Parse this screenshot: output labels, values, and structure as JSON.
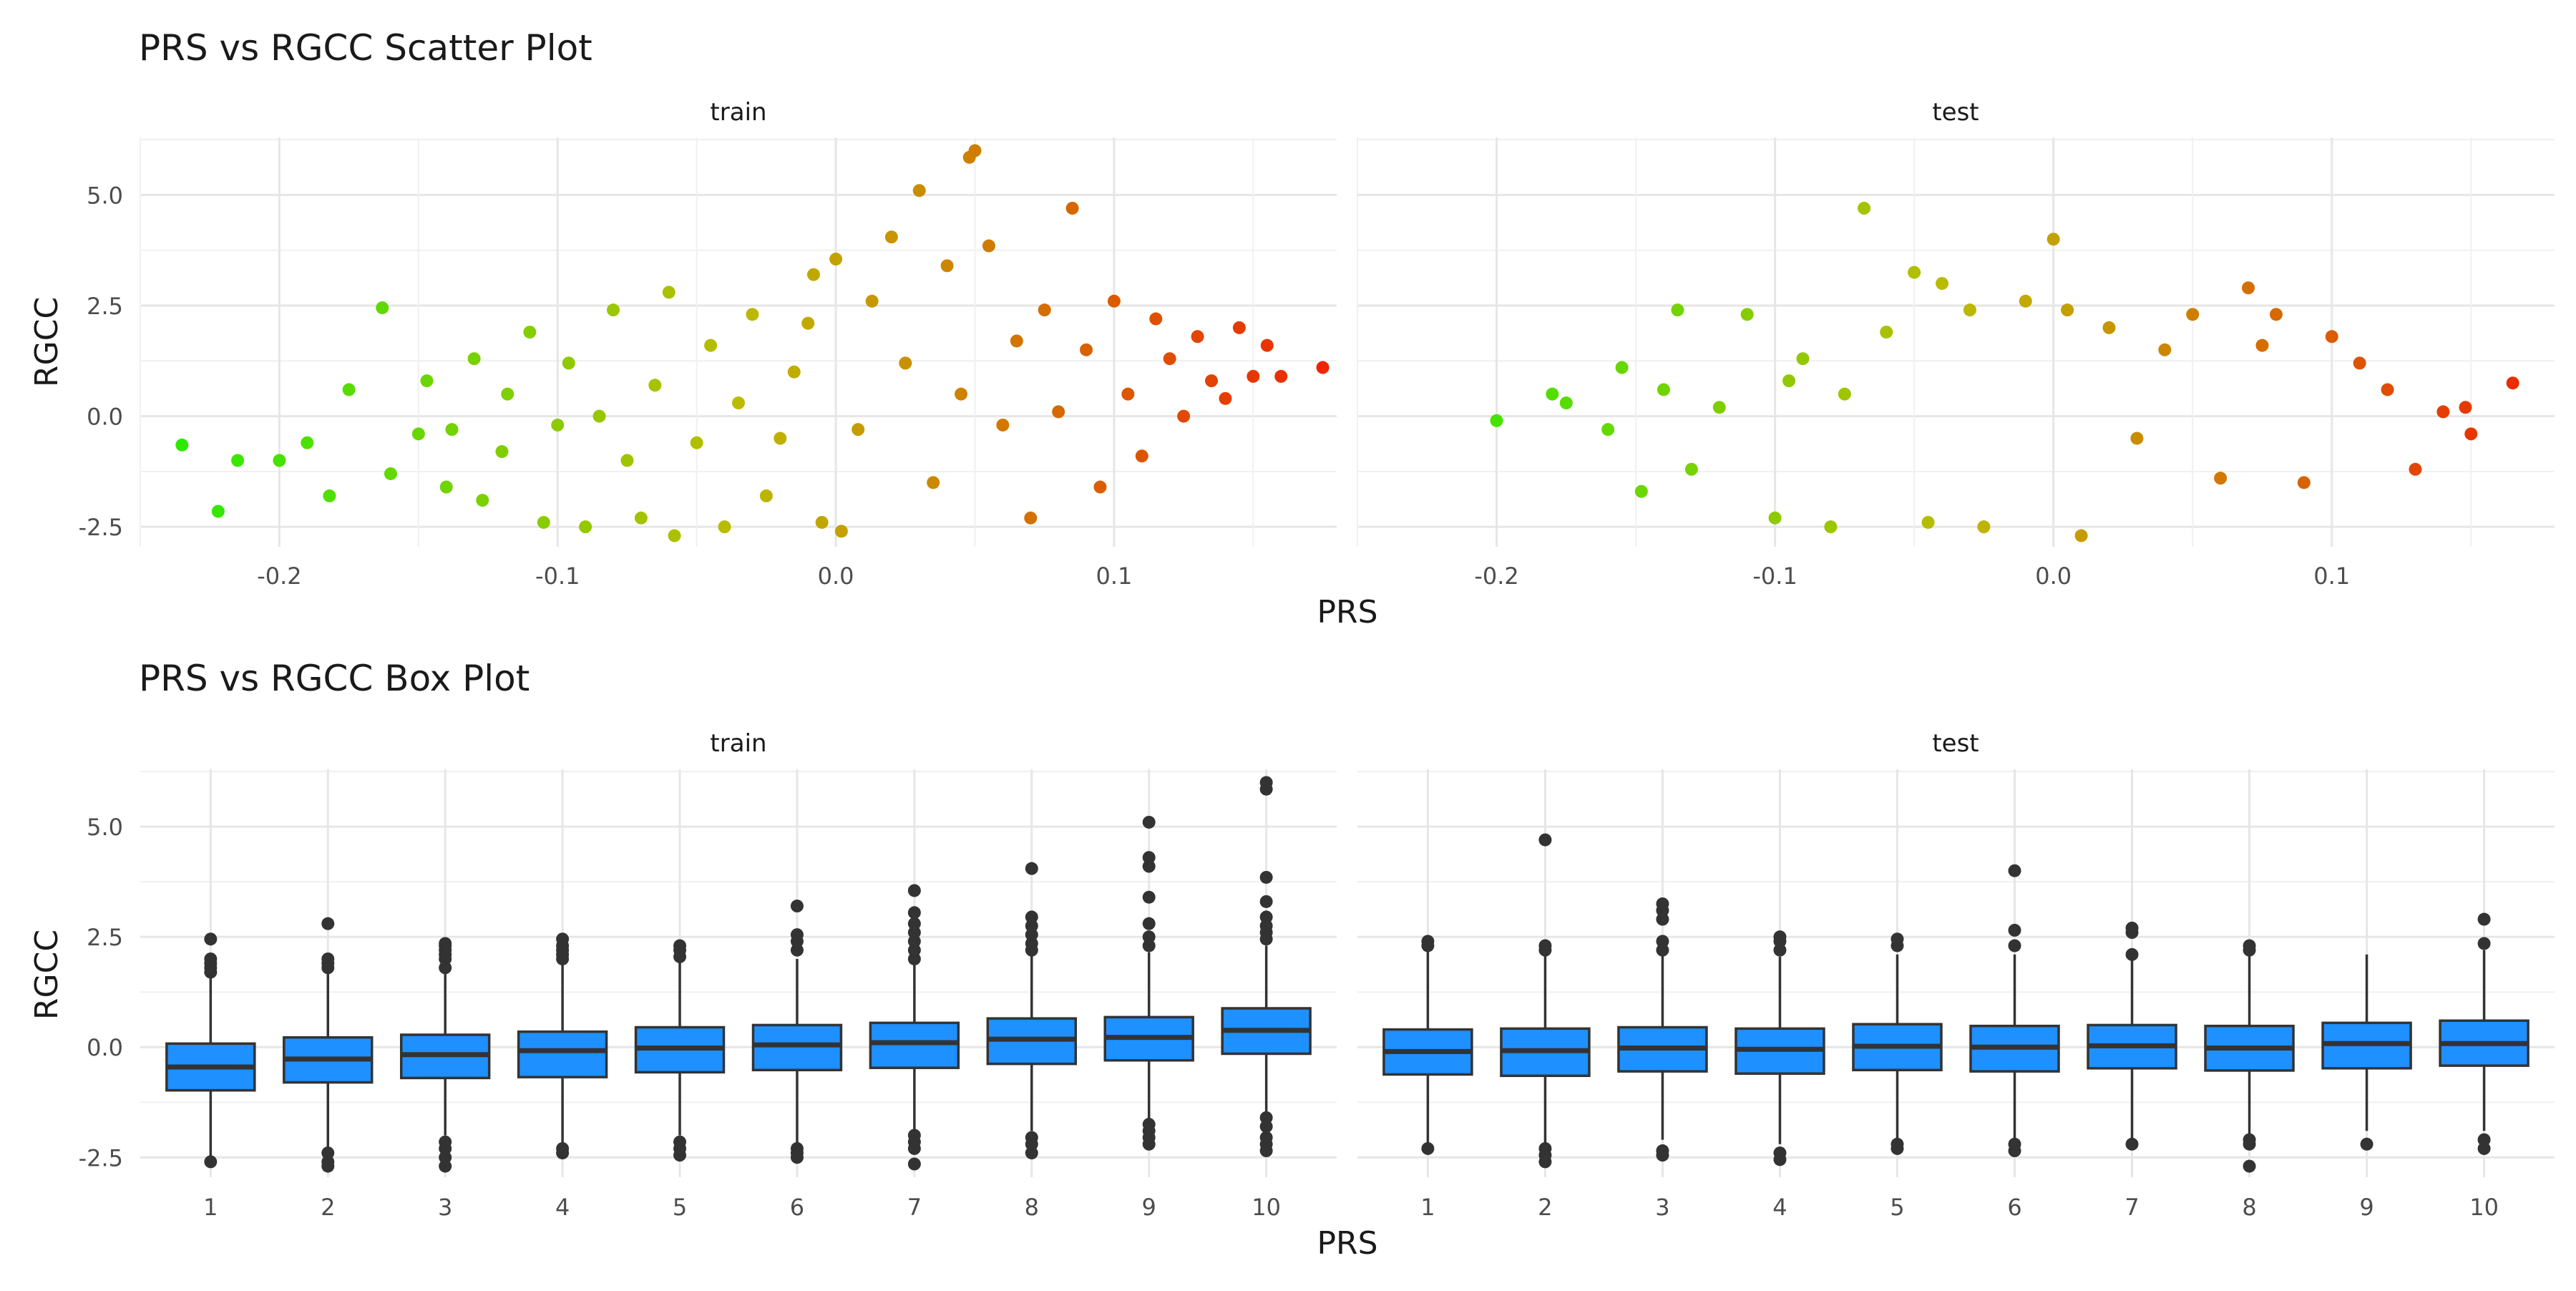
{
  "figure": {
    "scatter_title": "PRS vs RGCC Scatter Plot",
    "box_title": "PRS vs RGCC Box Plot",
    "xlabel": "PRS",
    "ylabel": "RGCC",
    "panel_titles": [
      "train",
      "test"
    ]
  },
  "chart_data": [
    {
      "type": "scatter",
      "title": "PRS vs RGCC Scatter Plot",
      "xlabel": "PRS",
      "ylabel": "RGCC",
      "facets": [
        "train",
        "test"
      ],
      "xlim": [
        -0.25,
        0.18
      ],
      "ylim": [
        -2.95,
        6.3
      ],
      "x_ticks": [
        -0.2,
        -0.1,
        0.0,
        0.1
      ],
      "x_tick_labels": [
        "-0.2",
        "-0.1",
        "0.0",
        "0.1"
      ],
      "y_ticks": [
        -2.5,
        0.0,
        2.5,
        5.0
      ],
      "y_tick_labels": [
        "-2.5",
        "0.0",
        "2.5",
        "5.0"
      ],
      "grid": true,
      "color_by": "PRS",
      "color_low": "#22ee00",
      "color_mid": "#bbbb00",
      "color_high": "#ee2200",
      "legend": "none",
      "series": [
        {
          "facet": "train",
          "x": [
            -0.235,
            -0.222,
            -0.215,
            -0.2,
            -0.19,
            -0.182,
            -0.175,
            -0.163,
            -0.16,
            -0.15,
            -0.147,
            -0.14,
            -0.138,
            -0.13,
            -0.127,
            -0.12,
            -0.118,
            -0.11,
            -0.105,
            -0.1,
            -0.096,
            -0.09,
            -0.085,
            -0.08,
            -0.075,
            -0.07,
            -0.065,
            -0.06,
            -0.058,
            -0.05,
            -0.045,
            -0.04,
            -0.035,
            -0.03,
            -0.025,
            -0.02,
            -0.015,
            -0.01,
            -0.008,
            -0.005,
            0.0,
            0.002,
            0.008,
            0.013,
            0.02,
            0.025,
            0.03,
            0.035,
            0.04,
            0.045,
            0.048,
            0.05,
            0.055,
            0.06,
            0.065,
            0.07,
            0.075,
            0.08,
            0.085,
            0.09,
            0.095,
            0.1,
            0.105,
            0.11,
            0.115,
            0.12,
            0.125,
            0.13,
            0.135,
            0.14,
            0.145,
            0.15,
            0.155,
            0.16,
            0.175
          ],
          "y": [
            -0.65,
            -2.15,
            -1.0,
            -1.0,
            -0.6,
            -1.8,
            0.6,
            2.45,
            -1.3,
            -0.4,
            0.8,
            -1.6,
            -0.3,
            1.3,
            -1.9,
            -0.8,
            0.5,
            1.9,
            -2.4,
            -0.2,
            1.2,
            -2.5,
            0.0,
            2.4,
            -1.0,
            -2.3,
            0.7,
            2.8,
            -2.7,
            -0.6,
            1.6,
            -2.5,
            0.3,
            2.3,
            -1.8,
            -0.5,
            1.0,
            2.1,
            3.2,
            -2.4,
            3.55,
            -2.6,
            -0.3,
            2.6,
            4.05,
            1.2,
            5.1,
            -1.5,
            3.4,
            0.5,
            5.85,
            6.0,
            3.85,
            -0.2,
            1.7,
            -2.3,
            2.4,
            0.1,
            4.7,
            1.5,
            -1.6,
            2.6,
            0.5,
            -0.9,
            2.2,
            1.3,
            0.0,
            1.8,
            0.8,
            0.4,
            2.0,
            0.9,
            1.6,
            0.9,
            1.1
          ]
        },
        {
          "facet": "test",
          "x": [
            -0.2,
            -0.18,
            -0.175,
            -0.16,
            -0.155,
            -0.148,
            -0.14,
            -0.135,
            -0.13,
            -0.12,
            -0.11,
            -0.1,
            -0.095,
            -0.09,
            -0.08,
            -0.075,
            -0.068,
            -0.06,
            -0.05,
            -0.045,
            -0.04,
            -0.03,
            -0.025,
            -0.01,
            0.0,
            0.005,
            0.01,
            0.02,
            0.03,
            0.04,
            0.05,
            0.06,
            0.07,
            0.075,
            0.08,
            0.09,
            0.1,
            0.11,
            0.12,
            0.13,
            0.14,
            0.148,
            0.15,
            0.165
          ],
          "y": [
            -0.1,
            0.5,
            0.3,
            -0.3,
            1.1,
            -1.7,
            0.6,
            2.4,
            -1.2,
            0.2,
            2.3,
            -2.3,
            0.8,
            1.3,
            -2.5,
            0.5,
            4.7,
            1.9,
            3.25,
            -2.4,
            3.0,
            2.4,
            -2.5,
            2.6,
            4.0,
            2.4,
            -2.7,
            2.0,
            -0.5,
            1.5,
            2.3,
            -1.4,
            2.9,
            1.6,
            2.3,
            -1.5,
            1.8,
            1.2,
            0.6,
            -1.2,
            0.1,
            0.2,
            -0.4,
            0.75
          ]
        }
      ]
    },
    {
      "type": "box",
      "title": "PRS vs RGCC Box Plot",
      "xlabel": "PRS",
      "ylabel": "RGCC",
      "facets": [
        "train",
        "test"
      ],
      "categories": [
        "1",
        "2",
        "3",
        "4",
        "5",
        "6",
        "7",
        "8",
        "9",
        "10"
      ],
      "ylim": [
        -2.95,
        6.3
      ],
      "y_ticks": [
        -2.5,
        0.0,
        2.5,
        5.0
      ],
      "y_tick_labels": [
        "-2.5",
        "0.0",
        "2.5",
        "5.0"
      ],
      "grid": true,
      "box_color": "#1e90ff",
      "legend": "none",
      "series": [
        {
          "facet": "train",
          "boxes": [
            {
              "q1": -0.98,
              "median": -0.45,
              "q3": 0.08,
              "whisker_low": -2.5,
              "whisker_high": 1.6,
              "outliers": [
                -2.6,
                1.7,
                1.8,
                1.9,
                2.0,
                2.45
              ]
            },
            {
              "q1": -0.8,
              "median": -0.27,
              "q3": 0.22,
              "whisker_low": -2.3,
              "whisker_high": 1.7,
              "outliers": [
                -2.7,
                -2.6,
                -2.4,
                1.8,
                1.9,
                2.0,
                2.8
              ]
            },
            {
              "q1": -0.7,
              "median": -0.17,
              "q3": 0.28,
              "whisker_low": -2.0,
              "whisker_high": 1.7,
              "outliers": [
                -2.7,
                -2.5,
                -2.3,
                -2.15,
                1.8,
                2.0,
                2.1,
                2.2,
                2.3,
                2.35
              ]
            },
            {
              "q1": -0.68,
              "median": -0.08,
              "q3": 0.35,
              "whisker_low": -2.2,
              "whisker_high": 1.9,
              "outliers": [
                -2.4,
                -2.3,
                2.0,
                2.1,
                2.2,
                2.3,
                2.45
              ]
            },
            {
              "q1": -0.57,
              "median": -0.02,
              "q3": 0.45,
              "whisker_low": -2.0,
              "whisker_high": 1.95,
              "outliers": [
                -2.45,
                -2.3,
                -2.15,
                2.05,
                2.2,
                2.3
              ]
            },
            {
              "q1": -0.52,
              "median": 0.05,
              "q3": 0.5,
              "whisker_low": -2.2,
              "whisker_high": 2.0,
              "outliers": [
                -2.5,
                -2.4,
                -2.3,
                2.2,
                2.4,
                2.55,
                3.2
              ]
            },
            {
              "q1": -0.47,
              "median": 0.1,
              "q3": 0.55,
              "whisker_low": -1.9,
              "whisker_high": 1.9,
              "outliers": [
                -2.65,
                -2.3,
                -2.15,
                -2.0,
                2.0,
                2.2,
                2.4,
                2.6,
                2.8,
                3.05,
                3.55
              ]
            },
            {
              "q1": -0.38,
              "median": 0.18,
              "q3": 0.65,
              "whisker_low": -1.9,
              "whisker_high": 2.1,
              "outliers": [
                -2.4,
                -2.2,
                -2.05,
                2.2,
                2.35,
                2.55,
                2.75,
                2.95,
                4.05
              ]
            },
            {
              "q1": -0.3,
              "median": 0.22,
              "q3": 0.68,
              "whisker_low": -1.7,
              "whisker_high": 2.15,
              "outliers": [
                -2.2,
                -2.05,
                -1.9,
                -1.75,
                2.3,
                2.5,
                2.8,
                3.4,
                4.1,
                4.3,
                5.1
              ]
            },
            {
              "q1": -0.15,
              "median": 0.38,
              "q3": 0.88,
              "whisker_low": -1.5,
              "whisker_high": 2.3,
              "outliers": [
                -2.35,
                -2.2,
                -2.05,
                -1.8,
                -1.6,
                2.45,
                2.6,
                2.75,
                2.95,
                3.3,
                3.85,
                5.85,
                6.0
              ]
            }
          ]
        },
        {
          "facet": "test",
          "boxes": [
            {
              "q1": -0.62,
              "median": -0.1,
              "q3": 0.4,
              "whisker_low": -2.2,
              "whisker_high": 2.2,
              "outliers": [
                -2.3,
                2.3,
                2.4
              ]
            },
            {
              "q1": -0.65,
              "median": -0.08,
              "q3": 0.42,
              "whisker_low": -2.2,
              "whisker_high": 2.1,
              "outliers": [
                -2.6,
                -2.45,
                -2.3,
                2.2,
                2.3,
                4.7
              ]
            },
            {
              "q1": -0.55,
              "median": -0.02,
              "q3": 0.45,
              "whisker_low": -2.1,
              "whisker_high": 2.1,
              "outliers": [
                -2.45,
                -2.35,
                2.2,
                2.4,
                2.9,
                3.1,
                3.25
              ]
            },
            {
              "q1": -0.6,
              "median": -0.05,
              "q3": 0.42,
              "whisker_low": -2.2,
              "whisker_high": 2.05,
              "outliers": [
                -2.55,
                -2.4,
                2.2,
                2.4,
                2.5
              ]
            },
            {
              "q1": -0.52,
              "median": 0.02,
              "q3": 0.52,
              "whisker_low": -2.1,
              "whisker_high": 2.1,
              "outliers": [
                -2.3,
                -2.2,
                2.3,
                2.45
              ]
            },
            {
              "q1": -0.55,
              "median": 0.0,
              "q3": 0.48,
              "whisker_low": -2.1,
              "whisker_high": 2.1,
              "outliers": [
                -2.35,
                -2.2,
                2.3,
                2.65,
                4.0
              ]
            },
            {
              "q1": -0.48,
              "median": 0.03,
              "q3": 0.5,
              "whisker_low": -2.1,
              "whisker_high": 2.0,
              "outliers": [
                -2.2,
                2.1,
                2.6,
                2.7
              ]
            },
            {
              "q1": -0.53,
              "median": -0.02,
              "q3": 0.48,
              "whisker_low": -2.0,
              "whisker_high": 2.1,
              "outliers": [
                -2.7,
                -2.2,
                -2.1,
                2.2,
                2.3
              ]
            },
            {
              "q1": -0.48,
              "median": 0.08,
              "q3": 0.55,
              "whisker_low": -1.9,
              "whisker_high": 2.1,
              "outliers": [
                -2.2
              ]
            },
            {
              "q1": -0.42,
              "median": 0.08,
              "q3": 0.6,
              "whisker_low": -1.9,
              "whisker_high": 2.2,
              "outliers": [
                -2.3,
                -2.1,
                2.35,
                2.9
              ]
            }
          ]
        }
      ]
    }
  ]
}
